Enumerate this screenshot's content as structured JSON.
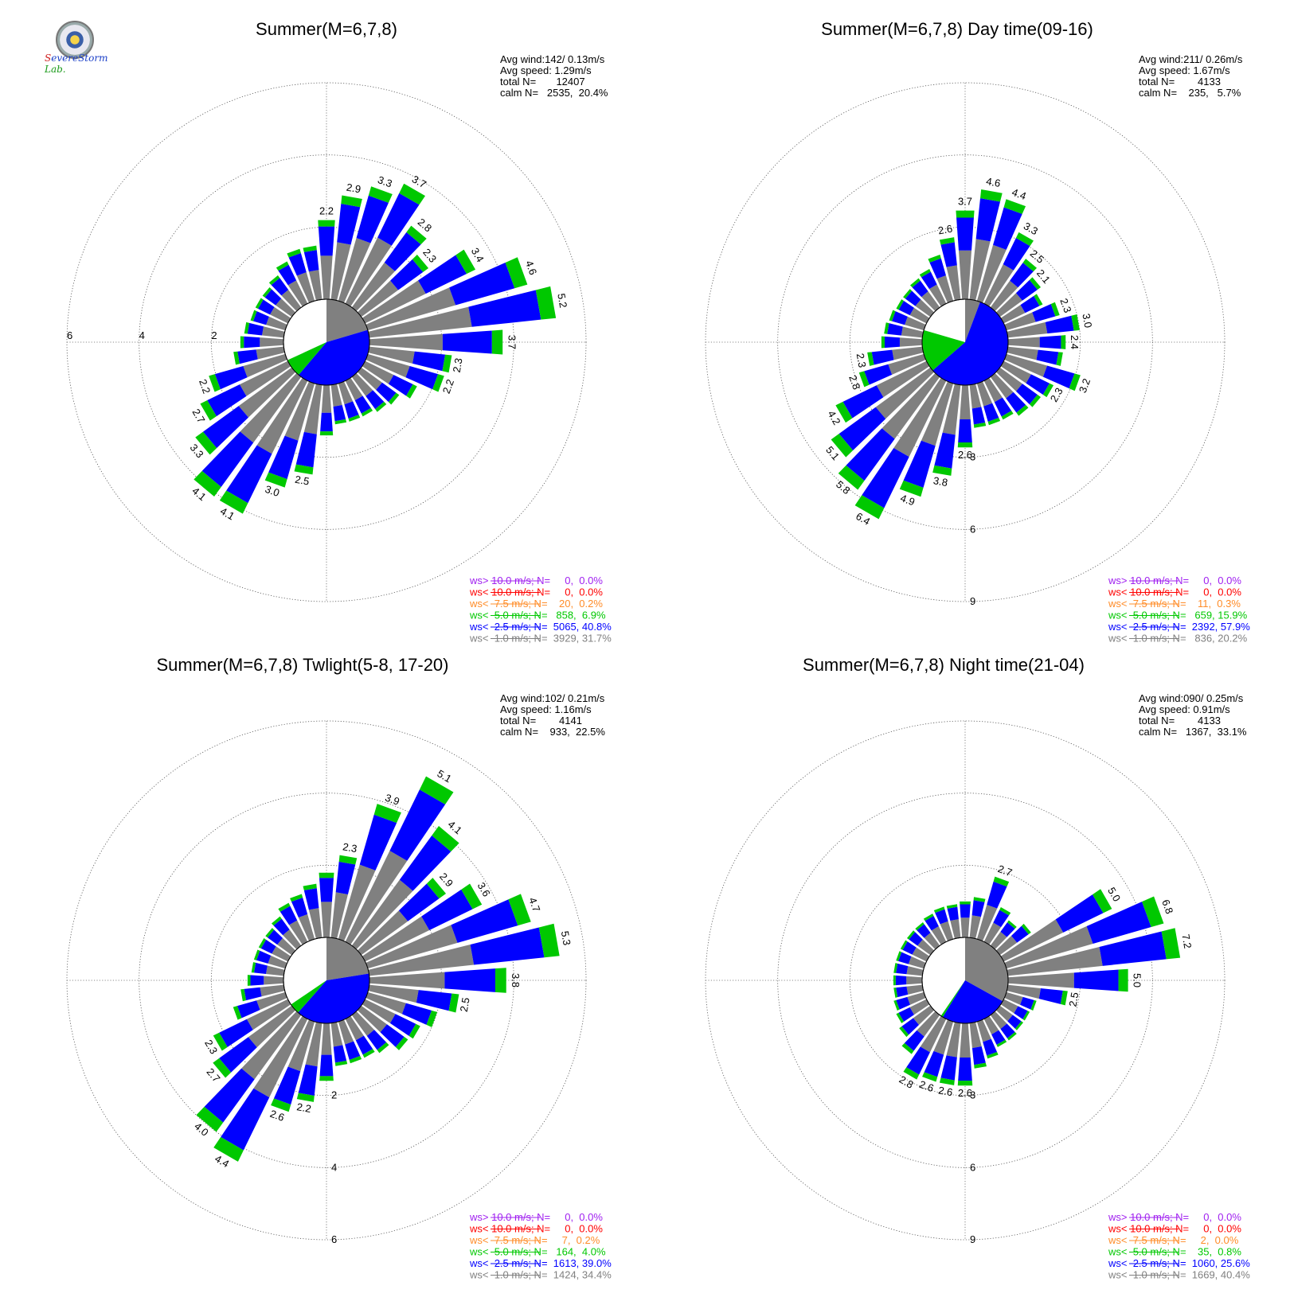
{
  "logo": {
    "text": "Severe Storm Lab."
  },
  "legend_colors": [
    "#a020f0",
    "#ff0000",
    "#ff8c28",
    "#00c800",
    "#0000ff",
    "#808080"
  ],
  "chart_data": [
    {
      "type": "wind-rose",
      "title": "Summer(M=6,7,8)",
      "stats": [
        "Avg wind:142/ 0.13m/s",
        "Avg speed: 1.29m/s",
        "total N=       12407",
        "calm N=   2535,  20.4%"
      ],
      "rings": [
        2,
        4,
        6
      ],
      "rmax": 6,
      "calm_pie": [
        0.204,
        0.408,
        0.069
      ],
      "legend": [
        "ws> 10.0 m/s; N=     0,  0.0%",
        "ws< 10.0 m/s; N=     0,  0.0%",
        "ws<  7.5 m/s; N=    20,  0.2%",
        "ws<  5.0 m/s; N=   858,  6.9%",
        "ws<  2.5 m/s; N=  5065, 40.8%",
        "ws<  1.0 m/s; N=  3929, 31.7%"
      ],
      "bars": [
        {
          "dir": 0,
          "total": 2.2,
          "label": "2.2"
        },
        {
          "dir": 10,
          "total": 2.9,
          "label": "2.9"
        },
        {
          "dir": 20,
          "total": 3.3,
          "label": "3.3"
        },
        {
          "dir": 30,
          "total": 3.7,
          "label": "3.7"
        },
        {
          "dir": 40,
          "total": 2.8,
          "label": "2.8"
        },
        {
          "dir": 50,
          "total": 2.3,
          "label": "2.3"
        },
        {
          "dir": 60,
          "total": 3.4,
          "label": "3.4"
        },
        {
          "dir": 70,
          "total": 4.6,
          "label": "4.6"
        },
        {
          "dir": 80,
          "total": 5.2,
          "label": "5.2"
        },
        {
          "dir": 90,
          "total": 3.7,
          "label": "3.7"
        },
        {
          "dir": 100,
          "total": 2.3,
          "label": "2.3"
        },
        {
          "dir": 110,
          "total": 2.2,
          "label": "2.2"
        },
        {
          "dir": 120,
          "total": 1.6
        },
        {
          "dir": 130,
          "total": 1.3
        },
        {
          "dir": 140,
          "total": 1.2
        },
        {
          "dir": 150,
          "total": 1.1
        },
        {
          "dir": 160,
          "total": 1.1
        },
        {
          "dir": 170,
          "total": 1.1
        },
        {
          "dir": 180,
          "total": 1.4
        },
        {
          "dir": 190,
          "total": 2.5,
          "label": "2.5"
        },
        {
          "dir": 200,
          "total": 3.0,
          "label": "3.0"
        },
        {
          "dir": 210,
          "total": 4.1,
          "label": "4.1"
        },
        {
          "dir": 220,
          "total": 4.1,
          "label": "4.1"
        },
        {
          "dir": 230,
          "total": 3.3,
          "label": "3.3"
        },
        {
          "dir": 240,
          "total": 2.7,
          "label": "2.7"
        },
        {
          "dir": 250,
          "total": 2.2,
          "label": "2.2"
        },
        {
          "dir": 260,
          "total": 1.4
        },
        {
          "dir": 270,
          "total": 1.2
        },
        {
          "dir": 280,
          "total": 1.1
        },
        {
          "dir": 290,
          "total": 1.0
        },
        {
          "dir": 300,
          "total": 1.0
        },
        {
          "dir": 310,
          "total": 1.0
        },
        {
          "dir": 320,
          "total": 1.1
        },
        {
          "dir": 330,
          "total": 1.3
        },
        {
          "dir": 340,
          "total": 1.5
        },
        {
          "dir": 350,
          "total": 1.5
        }
      ]
    },
    {
      "type": "wind-rose",
      "title": "Summer(M=6,7,8) Day time(09-16)",
      "stats": [
        "Avg wind:211/ 0.26m/s",
        "Avg speed: 1.67m/s",
        "total N=        4133",
        "calm N=    235,   5.7%"
      ],
      "rings": [
        3,
        6,
        9
      ],
      "rmax": 9,
      "calm_pie": [
        0.057,
        0.579,
        0.159
      ],
      "legend": [
        "ws> 10.0 m/s; N=     0,  0.0%",
        "ws< 10.0 m/s; N=     0,  0.0%",
        "ws<  7.5 m/s; N=    11,  0.3%",
        "ws<  5.0 m/s; N=   659, 15.9%",
        "ws<  2.5 m/s; N=  2392, 57.9%",
        "ws<  1.0 m/s; N=   836, 20.2%"
      ],
      "bars": [
        {
          "dir": 0,
          "total": 3.7,
          "label": "3.7"
        },
        {
          "dir": 10,
          "total": 4.6,
          "label": "4.6"
        },
        {
          "dir": 20,
          "total": 4.4,
          "label": "4.4"
        },
        {
          "dir": 30,
          "total": 3.3,
          "label": "3.3"
        },
        {
          "dir": 40,
          "total": 2.5,
          "label": "2.5"
        },
        {
          "dir": 50,
          "total": 2.1,
          "label": "2.1"
        },
        {
          "dir": 60,
          "total": 1.8
        },
        {
          "dir": 70,
          "total": 2.3,
          "label": "2.3"
        },
        {
          "dir": 80,
          "total": 3.0,
          "label": "3.0"
        },
        {
          "dir": 90,
          "total": 2.4,
          "label": "2.4"
        },
        {
          "dir": 100,
          "total": 2.3
        },
        {
          "dir": 110,
          "total": 3.2,
          "label": "3.2"
        },
        {
          "dir": 120,
          "total": 2.3,
          "label": "2.3"
        },
        {
          "dir": 130,
          "total": 2.1
        },
        {
          "dir": 140,
          "total": 2.0
        },
        {
          "dir": 150,
          "total": 1.8
        },
        {
          "dir": 160,
          "total": 1.8
        },
        {
          "dir": 170,
          "total": 1.8
        },
        {
          "dir": 180,
          "total": 2.6,
          "label": "2.6"
        },
        {
          "dir": 190,
          "total": 3.8,
          "label": "3.8"
        },
        {
          "dir": 200,
          "total": 4.9,
          "label": "4.9"
        },
        {
          "dir": 210,
          "total": 6.4,
          "label": "6.4"
        },
        {
          "dir": 220,
          "total": 5.8,
          "label": "5.8"
        },
        {
          "dir": 230,
          "total": 5.1,
          "label": "5.1"
        },
        {
          "dir": 240,
          "total": 4.2,
          "label": "4.2"
        },
        {
          "dir": 250,
          "total": 2.8,
          "label": "2.8"
        },
        {
          "dir": 260,
          "total": 2.3,
          "label": "2.3"
        },
        {
          "dir": 270,
          "total": 1.7
        },
        {
          "dir": 280,
          "total": 1.6
        },
        {
          "dir": 290,
          "total": 1.5
        },
        {
          "dir": 300,
          "total": 1.4
        },
        {
          "dir": 310,
          "total": 1.4
        },
        {
          "dir": 320,
          "total": 1.5
        },
        {
          "dir": 330,
          "total": 1.6
        },
        {
          "dir": 340,
          "total": 2.0
        },
        {
          "dir": 350,
          "total": 2.6,
          "label": "2.6"
        }
      ]
    },
    {
      "type": "wind-rose",
      "title": "Summer(M=6,7,8) Twlight(5-8, 17-20)",
      "stats": [
        "Avg wind:102/ 0.21m/s",
        "Avg speed: 1.16m/s",
        "total N=        4141",
        "calm N=    933,  22.5%"
      ],
      "rings": [
        2,
        4,
        6
      ],
      "rmax": 6,
      "calm_pie": [
        0.225,
        0.39,
        0.04
      ],
      "legend": [
        "ws> 10.0 m/s; N=     0,  0.0%",
        "ws< 10.0 m/s; N=     0,  0.0%",
        "ws<  7.5 m/s; N=     7,  0.2%",
        "ws<  5.0 m/s; N=   164,  4.0%",
        "ws<  2.5 m/s; N=  1613, 39.0%",
        "ws<  1.0 m/s; N=  1424, 34.4%"
      ],
      "bars": [
        {
          "dir": 0,
          "total": 1.8
        },
        {
          "dir": 10,
          "total": 2.3,
          "label": "2.3"
        },
        {
          "dir": 20,
          "total": 3.9,
          "label": "3.9"
        },
        {
          "dir": 30,
          "total": 5.1,
          "label": "5.1"
        },
        {
          "dir": 40,
          "total": 4.1,
          "label": "4.1"
        },
        {
          "dir": 50,
          "total": 2.9,
          "label": "2.9"
        },
        {
          "dir": 60,
          "total": 3.6,
          "label": "3.6"
        },
        {
          "dir": 70,
          "total": 4.7,
          "label": "4.7"
        },
        {
          "dir": 80,
          "total": 5.3,
          "label": "5.3"
        },
        {
          "dir": 90,
          "total": 3.8,
          "label": "3.8"
        },
        {
          "dir": 100,
          "total": 2.5,
          "label": "2.5"
        },
        {
          "dir": 110,
          "total": 2.0
        },
        {
          "dir": 120,
          "total": 1.7
        },
        {
          "dir": 130,
          "total": 1.6
        },
        {
          "dir": 140,
          "total": 1.3
        },
        {
          "dir": 150,
          "total": 1.2
        },
        {
          "dir": 160,
          "total": 1.2
        },
        {
          "dir": 170,
          "total": 1.2
        },
        {
          "dir": 180,
          "total": 1.6
        },
        {
          "dir": 190,
          "total": 2.2,
          "label": "2.2"
        },
        {
          "dir": 200,
          "total": 2.6,
          "label": "2.6"
        },
        {
          "dir": 210,
          "total": 4.4,
          "label": "4.4"
        },
        {
          "dir": 220,
          "total": 4.0,
          "label": "4.0"
        },
        {
          "dir": 230,
          "total": 2.7,
          "label": "2.7"
        },
        {
          "dir": 240,
          "total": 2.3,
          "label": "2.3"
        },
        {
          "dir": 250,
          "total": 1.5
        },
        {
          "dir": 260,
          "total": 1.2
        },
        {
          "dir": 270,
          "total": 1.0
        },
        {
          "dir": 280,
          "total": 0.9
        },
        {
          "dir": 290,
          "total": 0.9
        },
        {
          "dir": 300,
          "total": 0.9
        },
        {
          "dir": 310,
          "total": 0.9
        },
        {
          "dir": 320,
          "total": 1.0
        },
        {
          "dir": 330,
          "total": 1.2
        },
        {
          "dir": 340,
          "total": 1.3
        },
        {
          "dir": 350,
          "total": 1.5
        }
      ]
    },
    {
      "type": "wind-rose",
      "title": "Summer(M=6,7,8) Night time(21-04)",
      "stats": [
        "Avg wind:090/ 0.25m/s",
        "Avg speed: 0.91m/s",
        "total N=        4133",
        "calm N=   1367,  33.1%"
      ],
      "rings": [
        3,
        6,
        9
      ],
      "rmax": 9,
      "calm_pie": [
        0.331,
        0.256,
        0.008
      ],
      "legend": [
        "ws> 10.0 m/s; N=     0,  0.0%",
        "ws< 10.0 m/s; N=     0,  0.0%",
        "ws<  7.5 m/s; N=     2,  0.0%",
        "ws<  5.0 m/s; N=    35,  0.8%",
        "ws<  2.5 m/s; N=  1060, 25.6%",
        "ws<  1.0 m/s; N=  1669, 40.4%"
      ],
      "bars": [
        {
          "dir": 0,
          "total": 1.5
        },
        {
          "dir": 10,
          "total": 1.7
        },
        {
          "dir": 20,
          "total": 2.7,
          "label": "2.7"
        },
        {
          "dir": 30,
          "total": 1.6
        },
        {
          "dir": 40,
          "total": 1.3
        },
        {
          "dir": 50,
          "total": 1.6
        },
        {
          "dir": 60,
          "total": 5.0,
          "label": "5.0"
        },
        {
          "dir": 70,
          "total": 6.8,
          "label": "6.8"
        },
        {
          "dir": 80,
          "total": 7.2,
          "label": "7.2"
        },
        {
          "dir": 90,
          "total": 5.0,
          "label": "5.0"
        },
        {
          "dir": 100,
          "total": 2.5,
          "label": "2.5"
        },
        {
          "dir": 110,
          "total": 1.3
        },
        {
          "dir": 120,
          "total": 1.2
        },
        {
          "dir": 130,
          "total": 1.2
        },
        {
          "dir": 140,
          "total": 1.3
        },
        {
          "dir": 150,
          "total": 1.3
        },
        {
          "dir": 160,
          "total": 1.6
        },
        {
          "dir": 170,
          "total": 1.9
        },
        {
          "dir": 180,
          "total": 2.6,
          "label": "2.6"
        },
        {
          "dir": 190,
          "total": 2.6,
          "label": "2.6"
        },
        {
          "dir": 200,
          "total": 2.6,
          "label": "2.6"
        },
        {
          "dir": 210,
          "total": 2.8,
          "label": "2.8"
        },
        {
          "dir": 220,
          "total": 2.0
        },
        {
          "dir": 230,
          "total": 1.6
        },
        {
          "dir": 240,
          "total": 1.4
        },
        {
          "dir": 250,
          "total": 1.3
        },
        {
          "dir": 260,
          "total": 1.2
        },
        {
          "dir": 270,
          "total": 1.2
        },
        {
          "dir": 280,
          "total": 1.2
        },
        {
          "dir": 290,
          "total": 1.2
        },
        {
          "dir": 300,
          "total": 1.2
        },
        {
          "dir": 310,
          "total": 1.2
        },
        {
          "dir": 320,
          "total": 1.2
        },
        {
          "dir": 330,
          "total": 1.3
        },
        {
          "dir": 340,
          "total": 1.4
        },
        {
          "dir": 350,
          "total": 1.4
        }
      ]
    }
  ]
}
